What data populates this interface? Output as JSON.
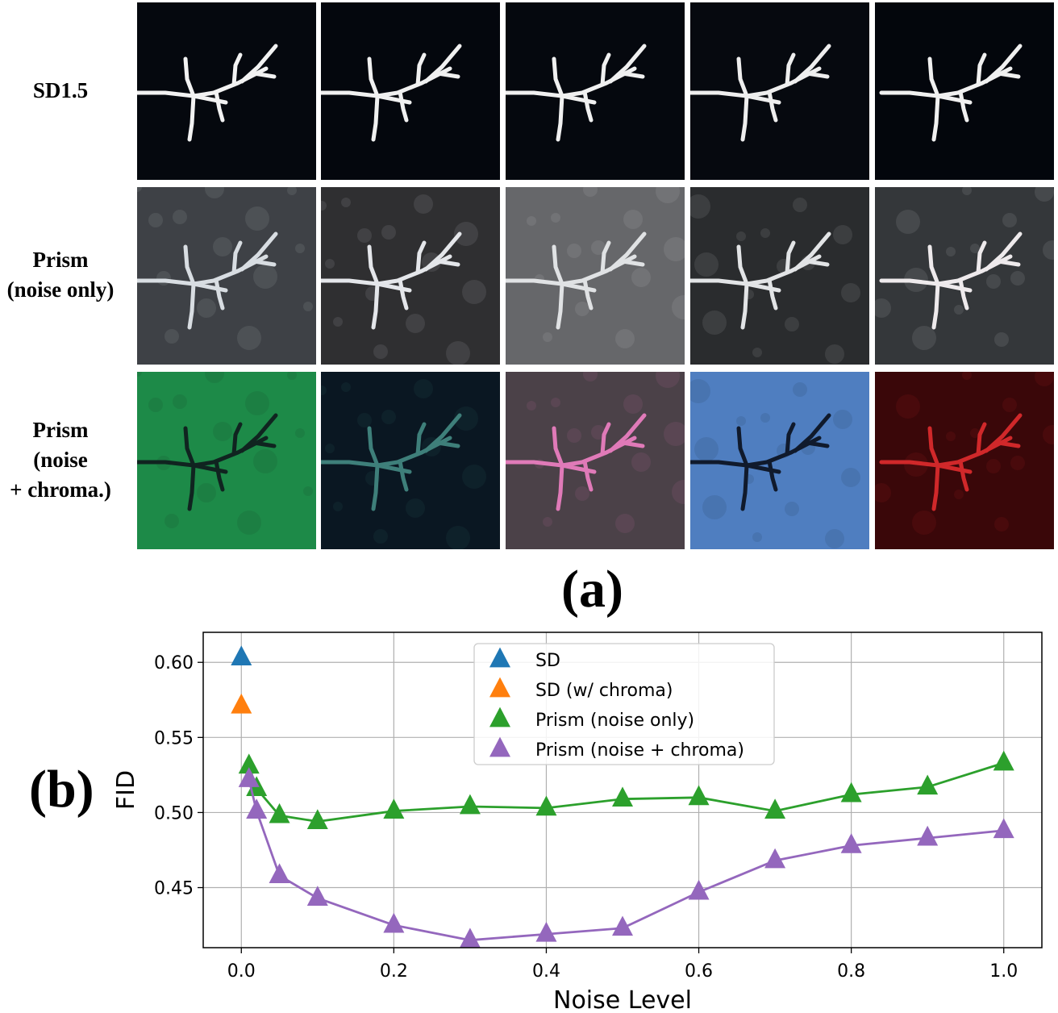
{
  "panel_a": {
    "label": "(a)",
    "rows": [
      {
        "label_lines": [
          "SD1.5"
        ]
      },
      {
        "label_lines": [
          "Prism",
          "(noise only)"
        ]
      },
      {
        "label_lines": [
          "Prism",
          "(noise",
          "+ chroma.)"
        ]
      }
    ],
    "tiles": [
      [
        {
          "bg": "#05080e",
          "fg": "#f2f2f2"
        },
        {
          "bg": "#04070d",
          "fg": "#f0f0f0"
        },
        {
          "bg": "#05080e",
          "fg": "#f0f0f0"
        },
        {
          "bg": "#06090f",
          "fg": "#eeeeee"
        },
        {
          "bg": "#03060c",
          "fg": "#f0f0f0"
        }
      ],
      [
        {
          "bg": "#3e4146",
          "fg": "#d8dde2"
        },
        {
          "bg": "#2f2f31",
          "fg": "#e4e6ea"
        },
        {
          "bg": "#66676a",
          "fg": "#e0e2e4"
        },
        {
          "bg": "#2a2c2e",
          "fg": "#e2e4e6"
        },
        {
          "bg": "#34373a",
          "fg": "#eeeaec"
        }
      ],
      [
        {
          "bg": "#1d8a48",
          "fg": "#102420"
        },
        {
          "bg": "#0a1722",
          "fg": "#3e7f7a"
        },
        {
          "bg": "#4b4148",
          "fg": "#e07ab8"
        },
        {
          "bg": "#4f7ec0",
          "fg": "#101a2c"
        },
        {
          "bg": "#3a0709",
          "fg": "#d0282a"
        }
      ]
    ]
  },
  "panel_b": {
    "label": "(b)",
    "chart_data": {
      "type": "line",
      "xlabel": "Noise Level",
      "ylabel": "FID",
      "xlim": [
        -0.05,
        1.05
      ],
      "ylim": [
        0.41,
        0.62
      ],
      "xticks": [
        0.0,
        0.2,
        0.4,
        0.6,
        0.8,
        1.0
      ],
      "xtick_labels": [
        "0.0",
        "0.2",
        "0.4",
        "0.6",
        "0.8",
        "1.0"
      ],
      "yticks": [
        0.45,
        0.5,
        0.55,
        0.6
      ],
      "ytick_labels": [
        "0.45",
        "0.50",
        "0.55",
        "0.60"
      ],
      "grid": true,
      "legend_position": "top-center",
      "series": [
        {
          "name": "SD",
          "color": "#1f77b4",
          "marker": "triangle",
          "connected": false,
          "x": [
            0.0
          ],
          "y": [
            0.603
          ]
        },
        {
          "name": "SD (w/ chroma)",
          "color": "#ff7f0e",
          "marker": "triangle",
          "connected": false,
          "x": [
            0.0
          ],
          "y": [
            0.571
          ]
        },
        {
          "name": "Prism (noise only)",
          "color": "#2ca02c",
          "marker": "triangle",
          "connected": true,
          "x": [
            0.01,
            0.02,
            0.05,
            0.1,
            0.2,
            0.3,
            0.4,
            0.5,
            0.6,
            0.7,
            0.8,
            0.9,
            1.0
          ],
          "y": [
            0.531,
            0.516,
            0.498,
            0.494,
            0.501,
            0.504,
            0.503,
            0.509,
            0.51,
            0.501,
            0.512,
            0.517,
            0.533
          ]
        },
        {
          "name": "Prism (noise + chroma)",
          "color": "#9467bd",
          "marker": "triangle",
          "connected": true,
          "x": [
            0.01,
            0.02,
            0.05,
            0.1,
            0.2,
            0.3,
            0.4,
            0.5,
            0.6,
            0.7,
            0.8,
            0.9,
            1.0
          ],
          "y": [
            0.522,
            0.501,
            0.458,
            0.443,
            0.425,
            0.415,
            0.419,
            0.423,
            0.447,
            0.468,
            0.478,
            0.483,
            0.488
          ]
        }
      ]
    }
  }
}
